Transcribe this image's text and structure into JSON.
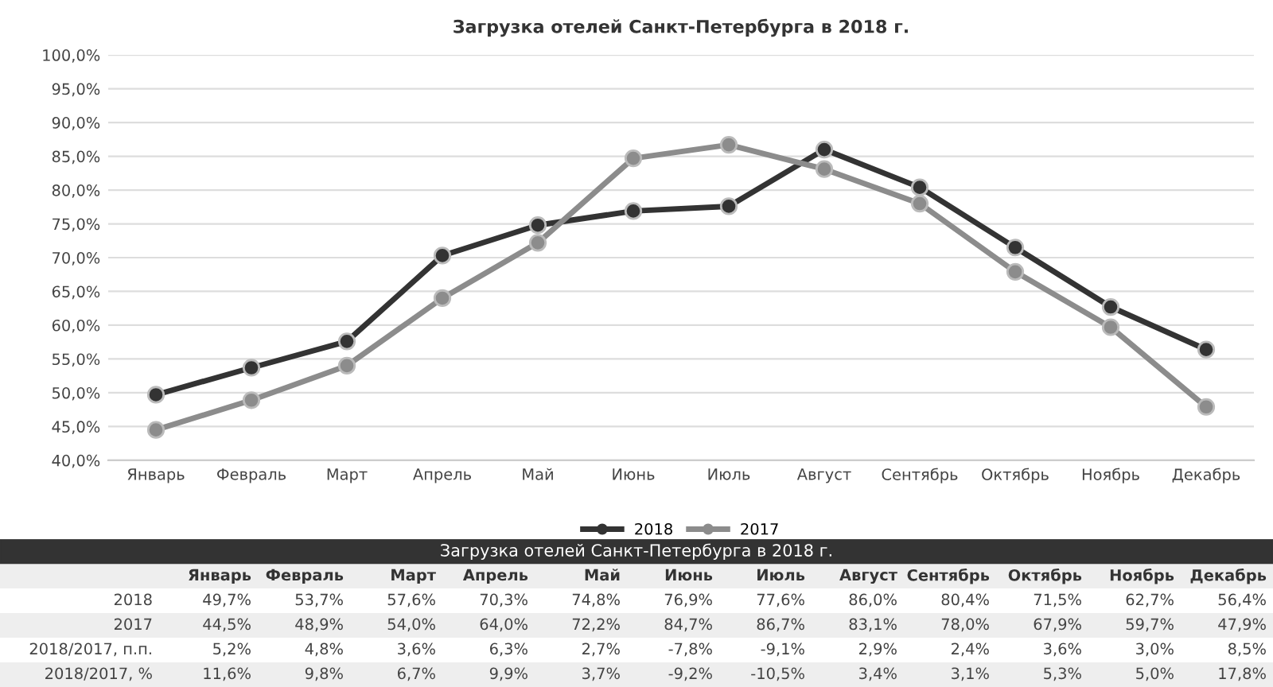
{
  "chart_data": [
    {
      "type": "line",
      "title": "Загрузка отелей Санкт-Петербурга в 2018 г.",
      "categories": [
        "Январь",
        "Февраль",
        "Март",
        "Апрель",
        "Май",
        "Июнь",
        "Июль",
        "Август",
        "Сентябрь",
        "Октябрь",
        "Ноябрь",
        "Декабрь"
      ],
      "series": [
        {
          "name": "2018",
          "color": "#333333",
          "values": [
            49.7,
            53.7,
            57.6,
            70.3,
            74.8,
            76.9,
            77.6,
            86.0,
            80.4,
            71.5,
            62.7,
            56.4
          ]
        },
        {
          "name": "2017",
          "color": "#8c8c8c",
          "values": [
            44.5,
            48.9,
            54.0,
            64.0,
            72.2,
            84.7,
            86.7,
            83.1,
            78.0,
            67.9,
            59.7,
            47.9
          ]
        }
      ],
      "ylim": [
        40,
        100
      ],
      "yticks": [
        {
          "value": 40,
          "label": "40,0%"
        },
        {
          "value": 45,
          "label": "45,0%"
        },
        {
          "value": 50,
          "label": "50,0%"
        },
        {
          "value": 55,
          "label": "55,0%"
        },
        {
          "value": 60,
          "label": "60,0%"
        },
        {
          "value": 65,
          "label": "65,0%"
        },
        {
          "value": 70,
          "label": "70,0%"
        },
        {
          "value": 75,
          "label": "75,0%"
        },
        {
          "value": 80,
          "label": "80,0%"
        },
        {
          "value": 85,
          "label": "85,0%"
        },
        {
          "value": 90,
          "label": "90,0%"
        },
        {
          "value": 95,
          "label": "95,0%"
        },
        {
          "value": 100,
          "label": "100,0%"
        }
      ],
      "grid": "y",
      "legend": "bottom",
      "marker": "circle",
      "line_style": "solid"
    },
    {
      "type": "other",
      "title": "Загрузка отелей Санкт-Петербурга в 2018 г.",
      "categories": [
        "Январь",
        "Февраль",
        "Март",
        "Апрель",
        "Май",
        "Июнь",
        "Июль",
        "Август",
        "Сентябрь",
        "Октябрь",
        "Ноябрь",
        "Декабрь"
      ],
      "series": [
        {
          "name": "2018",
          "values": [
            49.7,
            53.7,
            57.6,
            70.3,
            74.8,
            76.9,
            77.6,
            86.0,
            80.4,
            71.5,
            62.7,
            56.4
          ],
          "value_labels": [
            "49,7%",
            "53,7%",
            "57,6%",
            "70,3%",
            "74,8%",
            "76,9%",
            "77,6%",
            "86,0%",
            "80,4%",
            "71,5%",
            "62,7%",
            "56,4%"
          ]
        },
        {
          "name": "2017",
          "values": [
            44.5,
            48.9,
            54.0,
            64.0,
            72.2,
            84.7,
            86.7,
            83.1,
            78.0,
            67.9,
            59.7,
            47.9
          ],
          "value_labels": [
            "44,5%",
            "48,9%",
            "54,0%",
            "64,0%",
            "72,2%",
            "84,7%",
            "86,7%",
            "83,1%",
            "78,0%",
            "67,9%",
            "59,7%",
            "47,9%"
          ]
        },
        {
          "name": "2018/2017, п.п.",
          "values": [
            5.2,
            4.8,
            3.6,
            6.3,
            2.7,
            -7.8,
            -9.1,
            2.9,
            2.4,
            3.6,
            3.0,
            8.5
          ],
          "value_labels": [
            "5,2%",
            "4,8%",
            "3,6%",
            "6,3%",
            "2,7%",
            "-7,8%",
            "-9,1%",
            "2,9%",
            "2,4%",
            "3,6%",
            "3,0%",
            "8,5%"
          ]
        },
        {
          "name": "2018/2017, %",
          "values": [
            11.6,
            9.8,
            6.7,
            9.9,
            3.7,
            -9.2,
            -10.5,
            3.4,
            3.1,
            5.3,
            5.0,
            17.8
          ],
          "value_labels": [
            "11,6%",
            "9,8%",
            "6,7%",
            "9,9%",
            "3,7%",
            "-9,2%",
            "-10,5%",
            "3,4%",
            "3,1%",
            "5,3%",
            "5,0%",
            "17,8%"
          ]
        }
      ]
    }
  ]
}
